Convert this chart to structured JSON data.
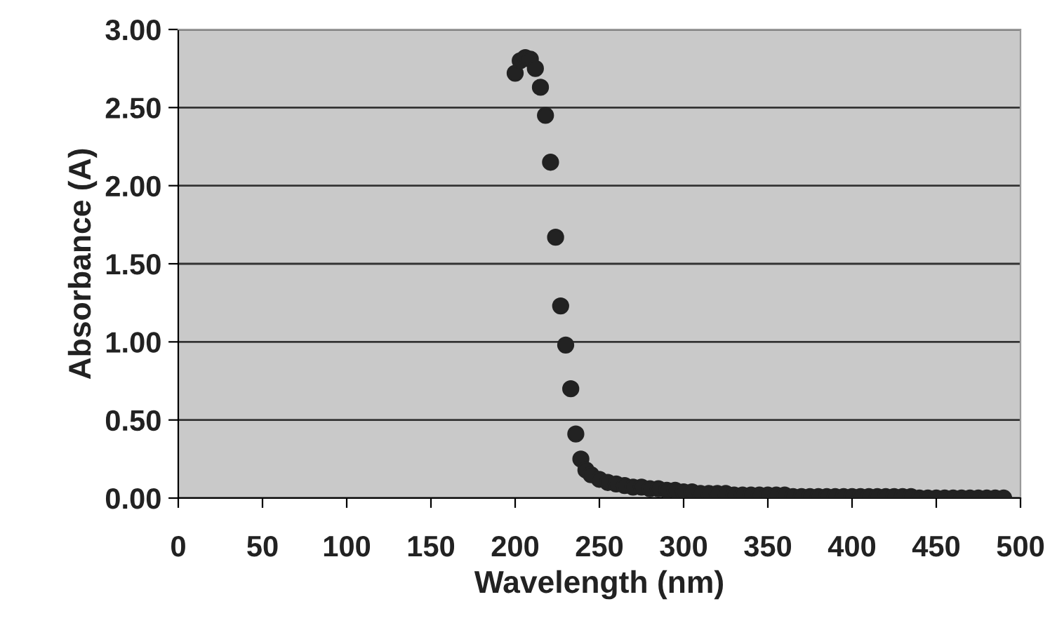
{
  "chart_data": {
    "type": "scatter",
    "xlabel": "Wavelength (nm)",
    "ylabel": "Absorbance (A)",
    "x": [
      200,
      203,
      206,
      209,
      212,
      215,
      218,
      221,
      224,
      227,
      230,
      233,
      236,
      239,
      242,
      245,
      250,
      255,
      260,
      265,
      270,
      275,
      280,
      285,
      290,
      295,
      300,
      305,
      310,
      315,
      320,
      325,
      330,
      335,
      340,
      345,
      350,
      355,
      360,
      365,
      370,
      375,
      380,
      385,
      390,
      395,
      400,
      405,
      410,
      415,
      420,
      425,
      430,
      435,
      440,
      445,
      450,
      455,
      460,
      465,
      470,
      475,
      480,
      485,
      490
    ],
    "series": [
      {
        "color": "#222222",
        "values": [
          2.72,
          2.8,
          2.82,
          2.81,
          2.75,
          2.63,
          2.45,
          2.15,
          1.67,
          1.23,
          0.98,
          0.7,
          0.41,
          0.25,
          0.18,
          0.15,
          0.12,
          0.1,
          0.09,
          0.08,
          0.07,
          0.07,
          0.06,
          0.06,
          0.05,
          0.05,
          0.04,
          0.04,
          0.03,
          0.03,
          0.03,
          0.03,
          0.02,
          0.02,
          0.02,
          0.02,
          0.02,
          0.02,
          0.02,
          0.01,
          0.01,
          0.01,
          0.01,
          0.01,
          0.01,
          0.01,
          0.01,
          0.01,
          0.01,
          0.01,
          0.01,
          0.01,
          0.01,
          0.01,
          0,
          0,
          0,
          0,
          0,
          0,
          0,
          0,
          0,
          0,
          0
        ]
      }
    ],
    "xlim": [
      0,
      500
    ],
    "xticks": [
      0,
      50,
      100,
      150,
      200,
      250,
      300,
      350,
      400,
      450,
      500
    ],
    "ylim": [
      0,
      3
    ],
    "yticks": [
      {
        "value": 0,
        "label": "0.00"
      },
      {
        "value": 0.5,
        "label": "0.50"
      },
      {
        "value": 1,
        "label": "1.00"
      },
      {
        "value": 1.5,
        "label": "1.50"
      },
      {
        "value": 2,
        "label": "2.00"
      },
      {
        "value": 2.5,
        "label": "2.50"
      },
      {
        "value": 3,
        "label": "3.00"
      }
    ],
    "grid": "y",
    "marker": "circle"
  }
}
